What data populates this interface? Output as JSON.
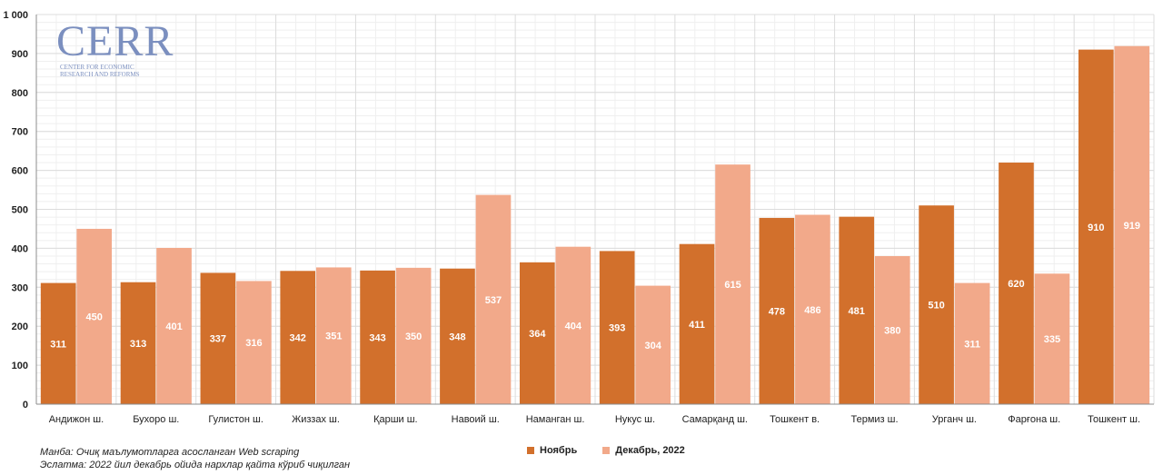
{
  "logo": {
    "main": "CERR",
    "sub_line1": "CENTER FOR ECONOMIC",
    "sub_line2": "RESEARCH AND REFORMS"
  },
  "notes": {
    "source": "Манба: Очиқ маълумотларга асосланган Web scraping",
    "remark": "Эслатма: 2022 йил декабрь ойида нархлар қайта кўриб чиқилган"
  },
  "colors": {
    "series1": "#d2702c",
    "series2": "#f2a98a",
    "grid": "#dcdcdc",
    "axis": "#8c8c8c"
  },
  "chart_data": {
    "type": "bar",
    "title": "",
    "xlabel": "",
    "ylabel": "",
    "ylim": [
      0,
      1000
    ],
    "yticks": [
      0,
      100,
      200,
      300,
      400,
      500,
      600,
      700,
      800,
      900,
      1000
    ],
    "ytick_labels": [
      "0",
      "100",
      "200",
      "300",
      "400",
      "500",
      "600",
      "700",
      "800",
      "900",
      "1 000"
    ],
    "grid": true,
    "legend_position": "bottom",
    "categories": [
      "Андижон ш.",
      "Бухоро ш.",
      "Гулистон ш.",
      "Жиззах ш.",
      "Қарши ш.",
      "Навоий ш.",
      "Наманган ш.",
      "Нукус ш.",
      "Самарқанд ш.",
      "Тошкент в.",
      "Термиз ш.",
      "Урганч ш.",
      "Фарғона ш.",
      "Тошкент ш."
    ],
    "series": [
      {
        "name": "Ноябрь",
        "values": [
          311,
          313,
          337,
          342,
          343,
          348,
          364,
          393,
          411,
          478,
          481,
          510,
          620,
          910
        ]
      },
      {
        "name": "Декабрь, 2022",
        "values": [
          450,
          401,
          316,
          351,
          350,
          537,
          404,
          304,
          615,
          486,
          380,
          311,
          335,
          919
        ]
      }
    ]
  }
}
